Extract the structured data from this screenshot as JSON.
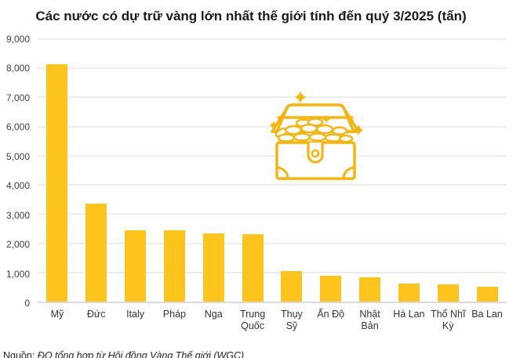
{
  "title": "Các nước có dự trữ vàng lớn nhất thế giới tính đến quý 3/2025 (tấn)",
  "source": {
    "prefix": "Nguồn:",
    "text": " ĐQ tổng hợp từ Hội đồng Vàng Thế giới (WGC)"
  },
  "colors": {
    "bar": "#FDC51B",
    "icon": "#F7B40A",
    "gridline": "#EDEDED",
    "axis_line": "#DCDCDC",
    "title_text": "#1B1B1B",
    "label_text": "#333333"
  },
  "icon": {
    "name": "treasure-chest-with-gold-coins-and-sparkles"
  },
  "chart_data": {
    "type": "bar",
    "title": "Các nước có dự trữ vàng lớn nhất thế giới tính đến quý 3/2025 (tấn)",
    "categories": [
      "Mỹ",
      "Đức",
      "Italy",
      "Pháp",
      "Nga",
      "Trung Quốc",
      "Thụy Sỹ",
      "Ấn Độ",
      "Nhật Bản",
      "Hà Lan",
      "Thổ Nhĩ Kỳ",
      "Ba Lan"
    ],
    "values": [
      8133,
      3350,
      2452,
      2437,
      2326,
      2303,
      1039,
      880,
      846,
      612,
      600,
      515
    ],
    "unit": "tấn",
    "xlabel": "",
    "ylabel": "",
    "ylim": [
      0,
      9000
    ],
    "grid": true,
    "legend": false,
    "yticks": [
      {
        "value": 0,
        "label": "0"
      },
      {
        "value": 1000,
        "label": "1,000"
      },
      {
        "value": 2000,
        "label": "2,000"
      },
      {
        "value": 3000,
        "label": "3,000"
      },
      {
        "value": 4000,
        "label": "4,000"
      },
      {
        "value": 5000,
        "label": "5,000"
      },
      {
        "value": 6000,
        "label": "6,000"
      },
      {
        "value": 7000,
        "label": "7,000"
      },
      {
        "value": 8000,
        "label": "8,000"
      },
      {
        "value": 9000,
        "label": "9,000"
      }
    ]
  }
}
